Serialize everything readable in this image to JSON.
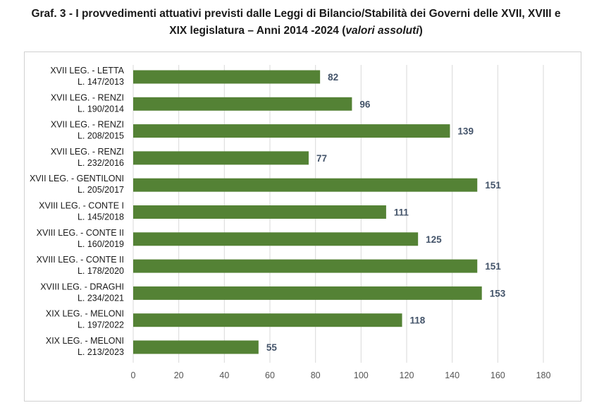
{
  "title": {
    "line1": "Graf. 3 - I provvedimenti attuativi previsti dalle Leggi di Bilancio/Stabilità dei Governi delle XVII, XVIII e",
    "line2_main": "XIX legislatura – Anni 2014 -2024 (",
    "line2_italic": "valori assoluti",
    "line2_end": ")"
  },
  "chart_data": {
    "type": "bar",
    "orientation": "horizontal",
    "categories": [
      [
        "XVII LEG. - LETTA",
        "L. 147/2013"
      ],
      [
        "XVII LEG. - RENZI",
        "L. 190/2014"
      ],
      [
        "XVII LEG. - RENZI",
        "L. 208/2015"
      ],
      [
        "XVII LEG. - RENZI",
        "L. 232/2016"
      ],
      [
        "XVII LEG. - GENTILONI",
        "L. 205/2017"
      ],
      [
        "XVIII LEG. - CONTE I",
        "L. 145/2018"
      ],
      [
        "XVIII LEG. - CONTE II",
        "L. 160/2019"
      ],
      [
        "XVIII LEG. - CONTE II",
        "L. 178/2020"
      ],
      [
        "XVIII LEG. - DRAGHI",
        "L. 234/2021"
      ],
      [
        "XIX LEG. - MELONI",
        "L. 197/2022"
      ],
      [
        "XIX LEG. - MELONI",
        "L. 213/2023"
      ]
    ],
    "values": [
      82,
      96,
      139,
      77,
      151,
      111,
      125,
      151,
      153,
      118,
      55
    ],
    "xlim": [
      0,
      180
    ],
    "xticks": [
      "0",
      "20",
      "40",
      "60",
      "80",
      "100",
      "120",
      "140",
      "160",
      "180"
    ],
    "grid": "vertical",
    "bar_color": "#548235",
    "label_color": "#44546a",
    "legend": "none"
  }
}
